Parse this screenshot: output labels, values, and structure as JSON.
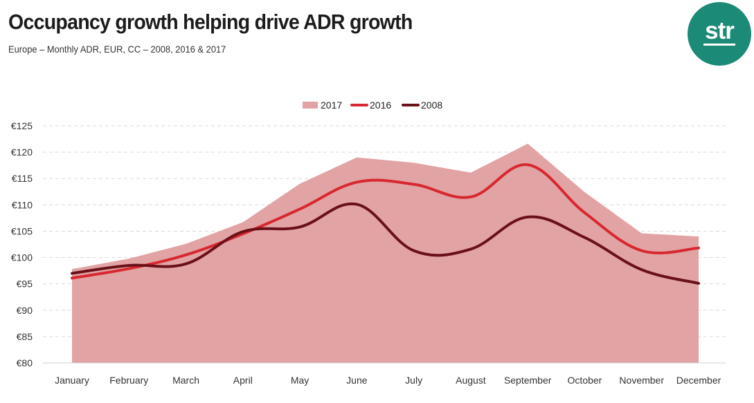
{
  "header": {
    "title": "Occupancy growth helping drive ADR growth",
    "subtitle": "Europe – Monthly ADR, EUR, CC – 2008, 2016 & 2017"
  },
  "logo": {
    "text": "str",
    "color": "#1b8a76"
  },
  "colors": {
    "series_2017": "#e2a3a4",
    "series_2016": "#d7282f",
    "series_2008": "#6a1018",
    "grid": "#d9d9d9"
  },
  "chart_data": {
    "type": "area",
    "categories": [
      "January",
      "February",
      "March",
      "April",
      "May",
      "June",
      "July",
      "August",
      "September",
      "October",
      "November",
      "December"
    ],
    "y_tick_labels": [
      "€80",
      "€85",
      "€90",
      "€95",
      "€100",
      "€105",
      "€110",
      "€115",
      "€120",
      "€125"
    ],
    "ylim": [
      80,
      125
    ],
    "grid": true,
    "legend_position": "top-center",
    "series": [
      {
        "name": "2017",
        "kind": "area",
        "values": [
          97.8,
          99.8,
          102.6,
          106.7,
          114.0,
          119.0,
          118.0,
          116.1,
          121.6,
          112.4,
          104.6,
          104.0
        ]
      },
      {
        "name": "2016",
        "kind": "line",
        "values": [
          96.1,
          97.9,
          100.5,
          104.5,
          109.2,
          114.3,
          113.9,
          111.5,
          117.6,
          108.5,
          101.3,
          101.8
        ]
      },
      {
        "name": "2008",
        "kind": "line",
        "values": [
          97.0,
          98.5,
          98.8,
          104.9,
          105.8,
          110.1,
          101.3,
          101.6,
          107.7,
          103.8,
          97.7,
          95.1
        ]
      }
    ]
  }
}
